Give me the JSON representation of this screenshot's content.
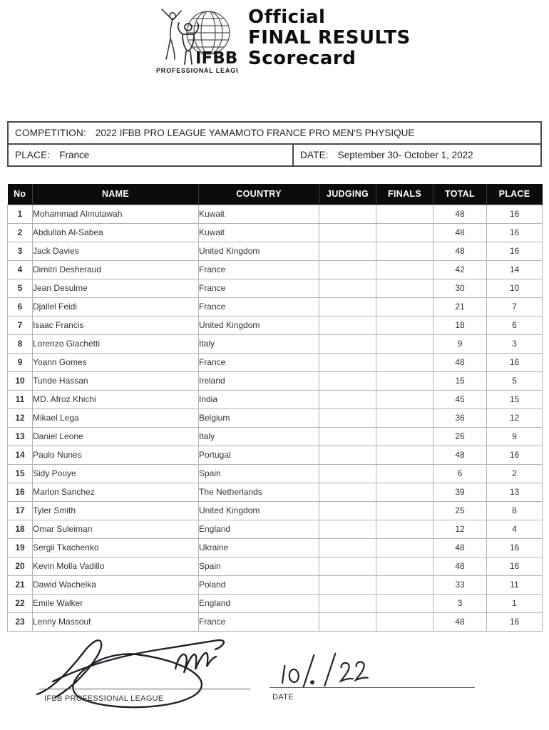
{
  "header": {
    "logo_icon": "ifbb-globe-figures-logo",
    "logo_text": "IFBB",
    "logo_subtext": "PROFESSIONAL LEAGUE",
    "title_line1": "Official",
    "title_line2": "FINAL RESULTS",
    "title_line3": "Scorecard"
  },
  "competition": {
    "competition_label": "COMPETITION:",
    "competition_name": "2022 IFBB PRO LEAGUE YAMAMOTO FRANCE PRO MEN'S PHYSIQUE",
    "place_label": "PLACE:",
    "place_value": "France",
    "date_label": "DATE:",
    "date_value": "September 30- October 1, 2022"
  },
  "results_table": {
    "columns": [
      "No",
      "NAME",
      "COUNTRY",
      "JUDGING",
      "FINALS",
      "TOTAL",
      "PLACE"
    ],
    "rows": [
      {
        "no": "1",
        "name": "Mohammad Almutawah",
        "country": "Kuwait",
        "judging": "",
        "finals": "",
        "total": "48",
        "place": "16"
      },
      {
        "no": "2",
        "name": "Abdullah Al-Sabea",
        "country": "Kuwait",
        "judging": "",
        "finals": "",
        "total": "48",
        "place": "16"
      },
      {
        "no": "3",
        "name": "Jack Davies",
        "country": "United Kingdom",
        "judging": "",
        "finals": "",
        "total": "48",
        "place": "16"
      },
      {
        "no": "4",
        "name": "Dimitri Desheraud",
        "country": "France",
        "judging": "",
        "finals": "",
        "total": "42",
        "place": "14"
      },
      {
        "no": "5",
        "name": "Jean Desulme",
        "country": "France",
        "judging": "",
        "finals": "",
        "total": "30",
        "place": "10"
      },
      {
        "no": "6",
        "name": "Djallel Feidi",
        "country": "France",
        "judging": "",
        "finals": "",
        "total": "21",
        "place": "7"
      },
      {
        "no": "7",
        "name": "Isaac Francis",
        "country": "United Kingdom",
        "judging": "",
        "finals": "",
        "total": "18",
        "place": "6"
      },
      {
        "no": "8",
        "name": "Lorenzo Giachetti",
        "country": "Italy",
        "judging": "",
        "finals": "",
        "total": "9",
        "place": "3"
      },
      {
        "no": "9",
        "name": "Yoann Gomes",
        "country": "France",
        "judging": "",
        "finals": "",
        "total": "48",
        "place": "16"
      },
      {
        "no": "10",
        "name": "Tunde Hassan",
        "country": "Ireland",
        "judging": "",
        "finals": "",
        "total": "15",
        "place": "5"
      },
      {
        "no": "11",
        "name": "MD. Afroz Khichi",
        "country": "India",
        "judging": "",
        "finals": "",
        "total": "45",
        "place": "15"
      },
      {
        "no": "12",
        "name": "Mikael Lega",
        "country": "Belgium",
        "judging": "",
        "finals": "",
        "total": "36",
        "place": "12"
      },
      {
        "no": "13",
        "name": "Daniel Leone",
        "country": "Italy",
        "judging": "",
        "finals": "",
        "total": "26",
        "place": "9"
      },
      {
        "no": "14",
        "name": "Paulo Nunes",
        "country": "Portugal",
        "judging": "",
        "finals": "",
        "total": "48",
        "place": "16"
      },
      {
        "no": "15",
        "name": "Sidy Pouye",
        "country": "Spain",
        "judging": "",
        "finals": "",
        "total": "6",
        "place": "2"
      },
      {
        "no": "16",
        "name": "Marlon Sanchez",
        "country": "The Netherlands",
        "judging": "",
        "finals": "",
        "total": "39",
        "place": "13"
      },
      {
        "no": "17",
        "name": "Tyler Smith",
        "country": "United Kingdom",
        "judging": "",
        "finals": "",
        "total": "25",
        "place": "8"
      },
      {
        "no": "18",
        "name": "Omar Suleiman",
        "country": "England",
        "judging": "",
        "finals": "",
        "total": "12",
        "place": "4"
      },
      {
        "no": "19",
        "name": "Sergii Tkachenko",
        "country": "Ukraine",
        "judging": "",
        "finals": "",
        "total": "48",
        "place": "16"
      },
      {
        "no": "20",
        "name": "Kevin Molla Vadillo",
        "country": "Spain",
        "judging": "",
        "finals": "",
        "total": "48",
        "place": "16"
      },
      {
        "no": "21",
        "name": "Dawid Wachelka",
        "country": "Poland",
        "judging": "",
        "finals": "",
        "total": "33",
        "place": "11"
      },
      {
        "no": "22",
        "name": "Emile Walker",
        "country": "England",
        "judging": "",
        "finals": "",
        "total": "3",
        "place": "1"
      },
      {
        "no": "23",
        "name": "Lenny Massouf",
        "country": "France",
        "judging": "",
        "finals": "",
        "total": "48",
        "place": "16"
      }
    ]
  },
  "signature_section": {
    "signature_icon": "handwritten-signature",
    "signer_label": "IFBB PROFESSIONAL LEAGUE",
    "handwritten_date": "10/./22",
    "date_label": "DATE"
  },
  "colors": {
    "table_header_bg": "#0b0b0b",
    "table_header_text": "#ffffff",
    "box_border": "#4a4a4a",
    "table_border": "#b3b3b3",
    "ink": "#20202a"
  }
}
